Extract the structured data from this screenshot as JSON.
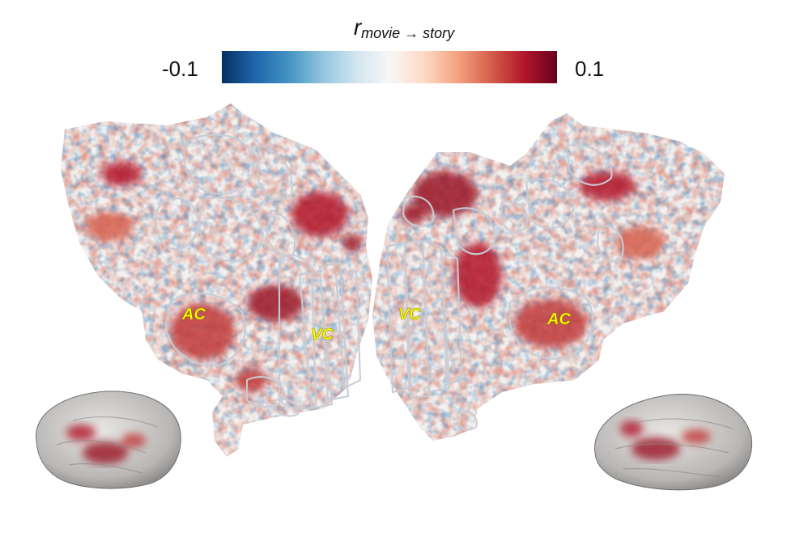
{
  "colorbar": {
    "title_main": "r",
    "title_sub": "movie → story",
    "min_label": "-0.1",
    "max_label": "0.1",
    "vmin": -0.1,
    "vmax": 0.1,
    "colors": [
      "#053061",
      "#2166ac",
      "#4393c3",
      "#92c5de",
      "#d1e5f0",
      "#f7f7f7",
      "#fddbc7",
      "#f4a582",
      "#d6604d",
      "#b2182b",
      "#67001f"
    ]
  },
  "flatmaps": {
    "left_hemisphere": {
      "roi_labels": [
        "AC",
        "VC"
      ]
    },
    "right_hemisphere": {
      "roi_labels": [
        "VC",
        "AC"
      ]
    }
  },
  "colors": {
    "roi_label": "#ffff00",
    "roi_outline": "#c8ccd4",
    "cortex_base": "#f3f1ef"
  }
}
